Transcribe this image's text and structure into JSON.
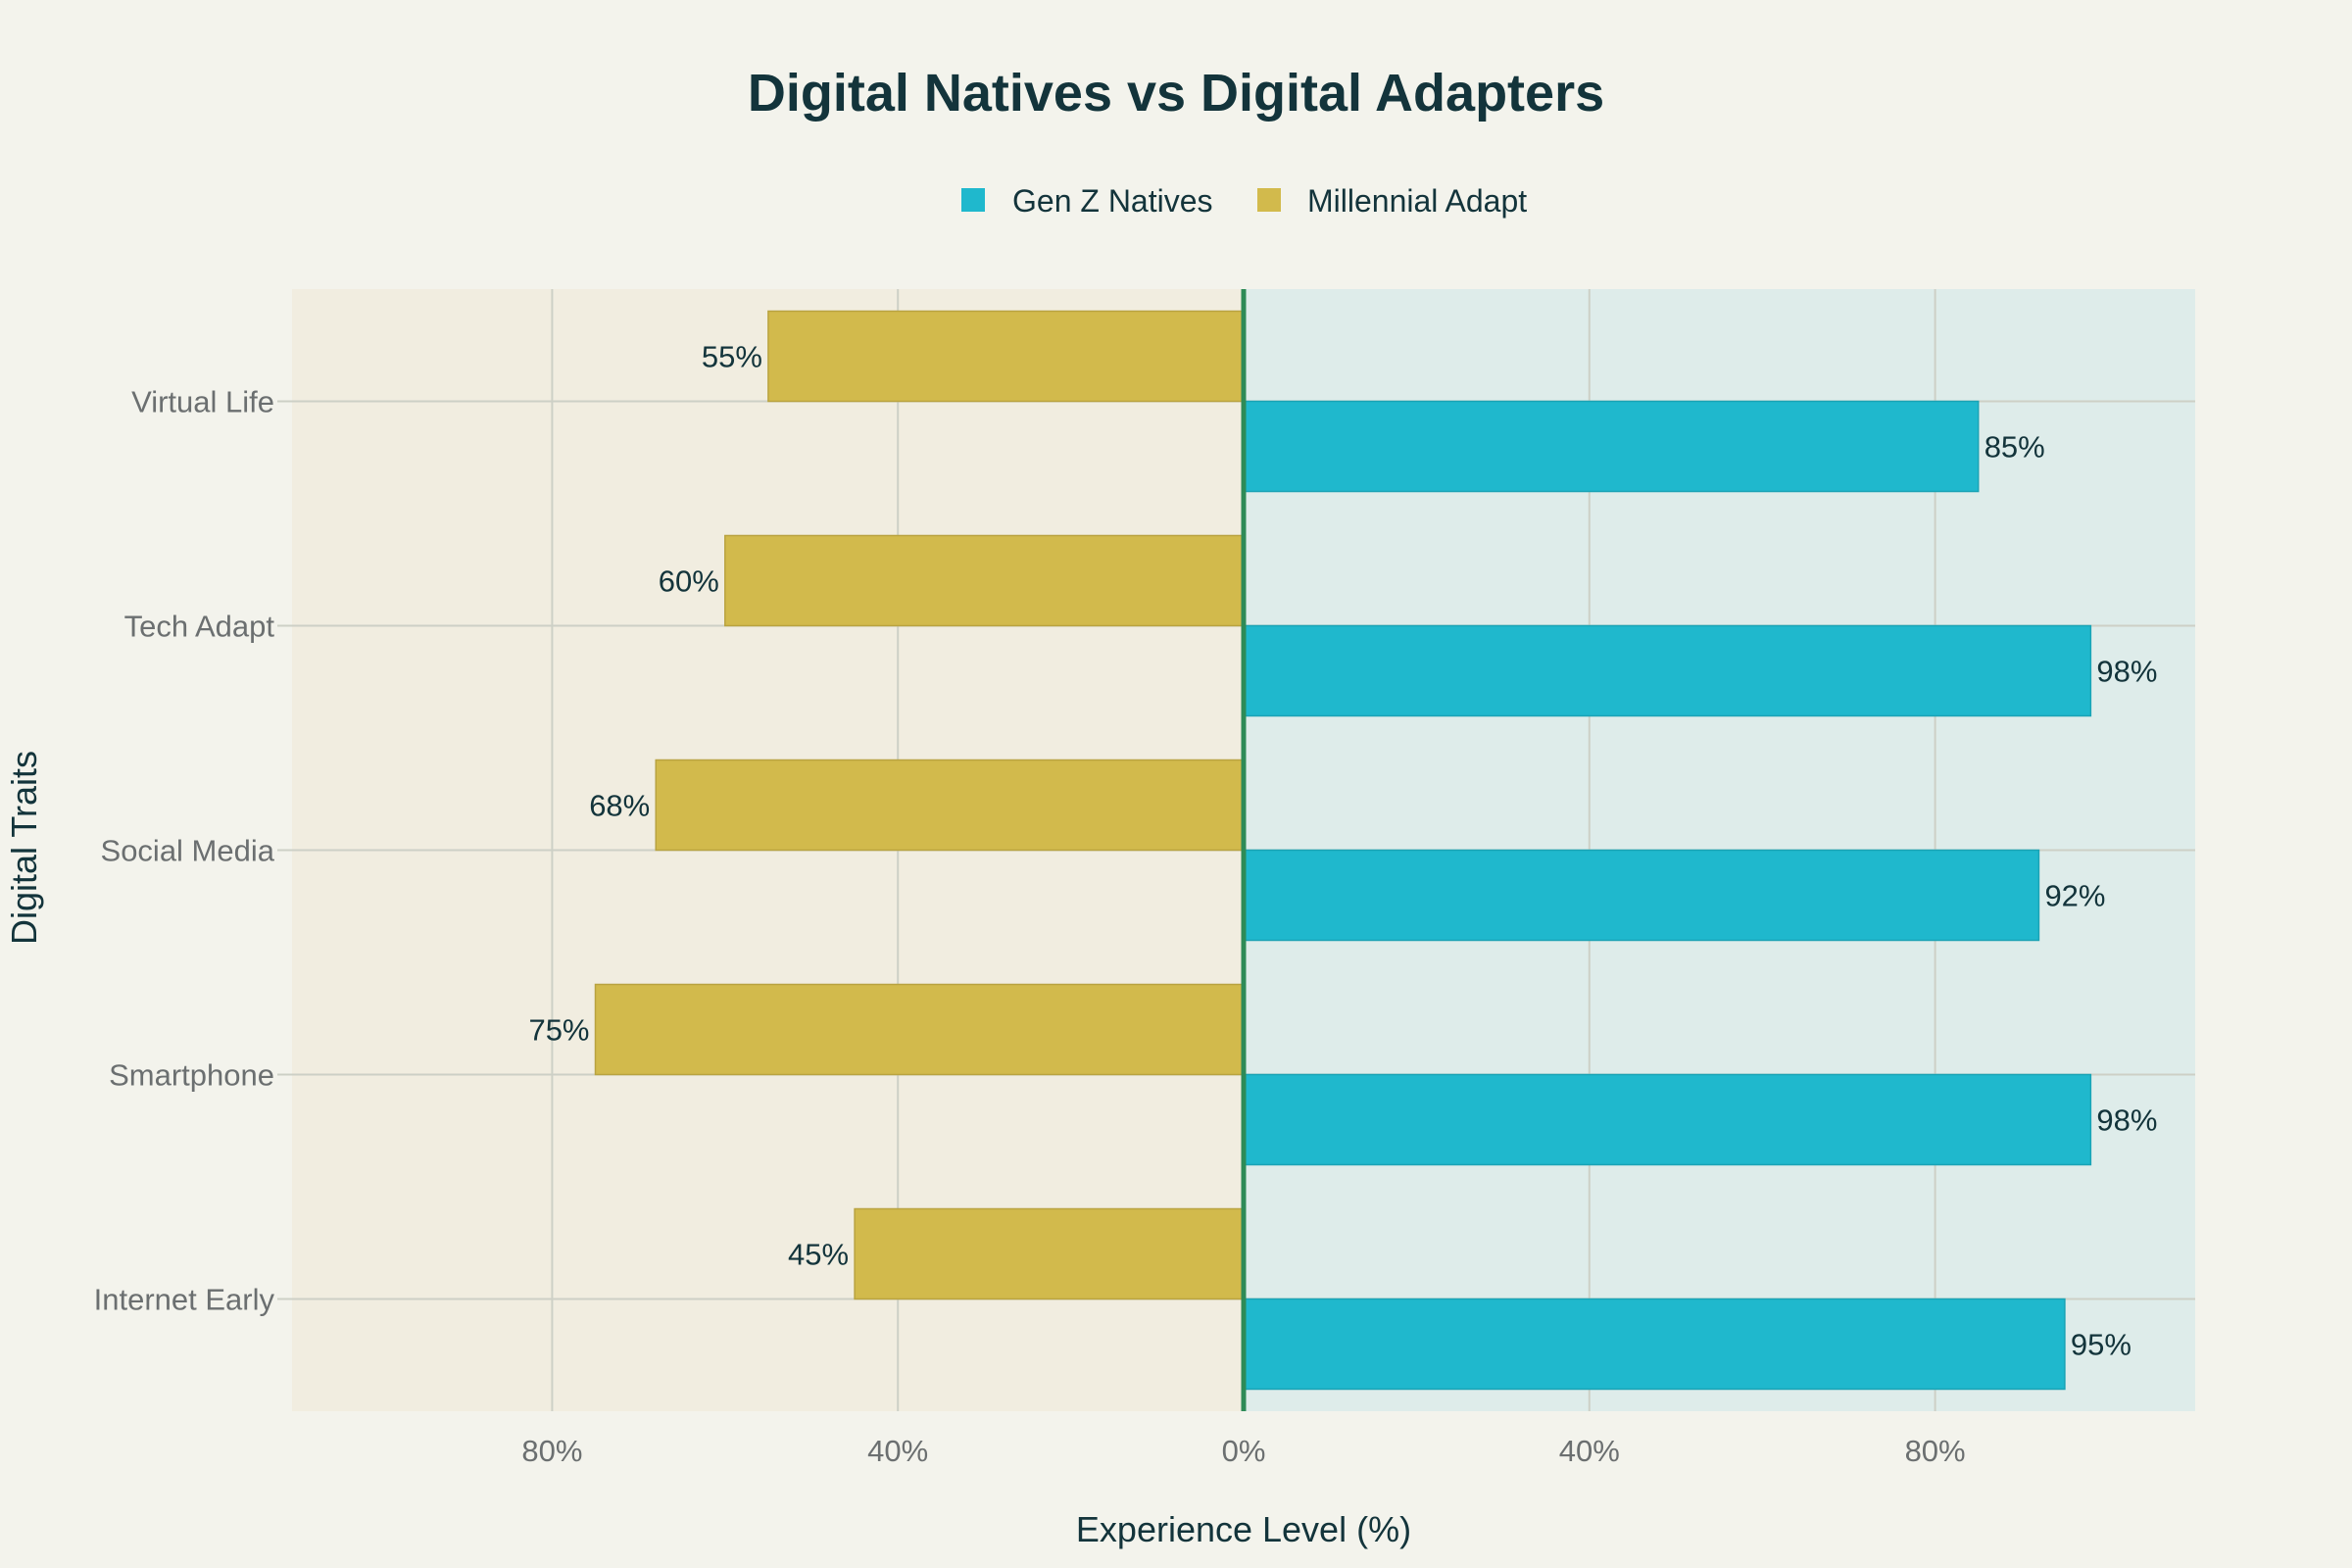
{
  "chart_data": {
    "type": "bar",
    "orientation": "horizontal-diverging",
    "title": "Digital Natives vs Digital Adapters",
    "xlabel": "Experience Level (%)",
    "ylabel": "Digital Traits",
    "xlim": [
      -110,
      110
    ],
    "x_ticks": [
      {
        "value": -80,
        "label": "80%"
      },
      {
        "value": -40,
        "label": "40%"
      },
      {
        "value": 0,
        "label": "0%"
      },
      {
        "value": 40,
        "label": "40%"
      },
      {
        "value": 80,
        "label": "80%"
      }
    ],
    "categories": [
      "Internet Early",
      "Smartphone",
      "Social Media",
      "Tech Adapt",
      "Virtual Life"
    ],
    "series": [
      {
        "name": "Gen Z Natives",
        "side": "right",
        "color": "#1fb8cd",
        "values": [
          95,
          98,
          92,
          98,
          85
        ],
        "labels": [
          "95%",
          "98%",
          "92%",
          "98%",
          "85%"
        ]
      },
      {
        "name": "Millennial Adapt",
        "side": "left",
        "color": "#d2ba4c",
        "values": [
          45,
          75,
          68,
          60,
          55
        ],
        "labels": [
          "45%",
          "75%",
          "68%",
          "60%",
          "55%"
        ]
      }
    ],
    "legend": "top-center",
    "grid": true,
    "colors": {
      "background": "#f3f3ec",
      "left_region": "#f1ede0",
      "right_region": "#deecea",
      "grid": "#cdd0c6",
      "zero_line": "#2e8b57",
      "text": "#13343b",
      "tick_text": "#6b6f70"
    }
  }
}
